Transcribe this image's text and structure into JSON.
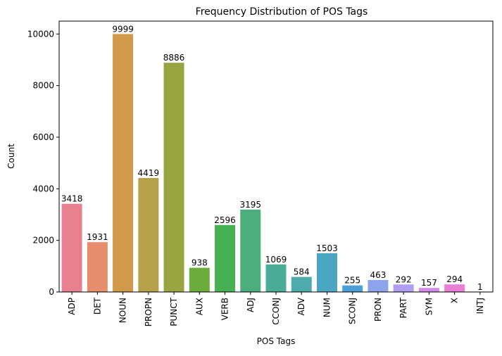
{
  "chart_data": {
    "type": "bar",
    "title": "Frequency Distribution of POS Tags",
    "xlabel": "POS Tags",
    "ylabel": "Count",
    "categories": [
      "ADP",
      "DET",
      "NOUN",
      "PROPN",
      "PUNCT",
      "AUX",
      "VERB",
      "ADJ",
      "CCONJ",
      "ADV",
      "NUM",
      "SCONJ",
      "PRON",
      "PART",
      "SYM",
      "X",
      "INTJ"
    ],
    "values": [
      3418,
      1931,
      9999,
      4419,
      8886,
      938,
      2596,
      3195,
      1069,
      584,
      1503,
      255,
      463,
      292,
      157,
      294,
      1
    ],
    "colors": [
      "#e8808f",
      "#e58d6d",
      "#d09a4a",
      "#b6a04a",
      "#98a43f",
      "#6bac3c",
      "#47b051",
      "#4bae7c",
      "#4aab96",
      "#4eaaad",
      "#4aa6c3",
      "#4d9fd9",
      "#8da3ec",
      "#b29ef0",
      "#d688ed",
      "#e87fd4",
      "#ea86b0"
    ],
    "ylim": [
      0,
      10500
    ],
    "yticks": [
      0,
      2000,
      4000,
      6000,
      8000,
      10000
    ],
    "grid": false,
    "legend": "none"
  }
}
